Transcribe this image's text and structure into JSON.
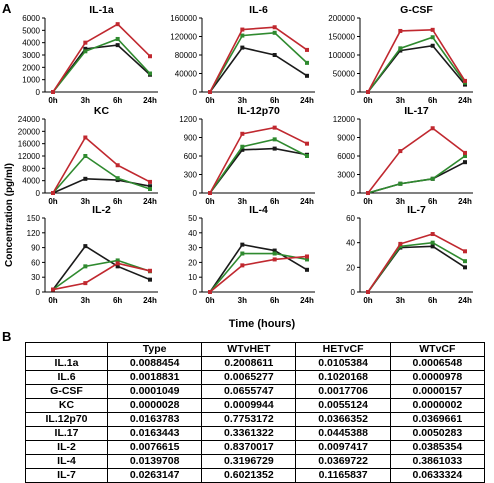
{
  "panel_a_label": "A",
  "panel_b_label": "B",
  "ylabel": "Concentration (pg/ml)",
  "xlabel": "Time (hours)",
  "colors": {
    "black": "#1a1a1a",
    "green": "#2f8a2f",
    "red": "#c0282f"
  },
  "chart_data": [
    {
      "type": "line",
      "title": "IL-1a",
      "categories": [
        "0h",
        "3h",
        "6h",
        "24h"
      ],
      "ylim": [
        0,
        6000
      ],
      "yticks": [
        0,
        1000,
        2000,
        3000,
        4000,
        5000,
        6000
      ],
      "series": [
        {
          "values": [
            0,
            3500,
            3800,
            1400
          ]
        },
        {
          "values": [
            0,
            3300,
            4300,
            1500
          ]
        },
        {
          "values": [
            0,
            4000,
            5500,
            2900
          ]
        }
      ]
    },
    {
      "type": "line",
      "title": "IL-6",
      "categories": [
        "0h",
        "3h",
        "6h",
        "24h"
      ],
      "ylim": [
        0,
        160000
      ],
      "yticks": [
        0,
        40000,
        80000,
        120000,
        160000
      ],
      "series": [
        {
          "values": [
            0,
            96000,
            80000,
            35000
          ]
        },
        {
          "values": [
            0,
            122000,
            128000,
            63000
          ]
        },
        {
          "values": [
            0,
            135000,
            140000,
            91000
          ]
        }
      ]
    },
    {
      "type": "line",
      "title": "G-CSF",
      "categories": [
        "0h",
        "3h",
        "6h",
        "24h"
      ],
      "ylim": [
        0,
        200000
      ],
      "yticks": [
        0,
        50000,
        100000,
        150000,
        200000
      ],
      "series": [
        {
          "values": [
            0,
            112000,
            125000,
            20000
          ]
        },
        {
          "values": [
            0,
            118000,
            148000,
            25000
          ]
        },
        {
          "values": [
            0,
            165000,
            168000,
            30000
          ]
        }
      ]
    },
    {
      "type": "line",
      "title": "KC",
      "categories": [
        "0h",
        "3h",
        "6h",
        "24h"
      ],
      "ylim": [
        0,
        24000
      ],
      "yticks": [
        0,
        4000,
        8000,
        12000,
        16000,
        20000,
        24000
      ],
      "series": [
        {
          "values": [
            0,
            4600,
            4200,
            2200
          ]
        },
        {
          "values": [
            0,
            12000,
            4800,
            1300
          ]
        },
        {
          "values": [
            0,
            18000,
            9000,
            3600
          ]
        }
      ]
    },
    {
      "type": "line",
      "title": "IL-12p70",
      "categories": [
        "0h",
        "3h",
        "6h",
        "24h"
      ],
      "ylim": [
        0,
        1200
      ],
      "yticks": [
        0,
        300,
        600,
        900,
        1200
      ],
      "series": [
        {
          "values": [
            0,
            700,
            720,
            620
          ]
        },
        {
          "values": [
            0,
            750,
            870,
            600
          ]
        },
        {
          "values": [
            0,
            960,
            1060,
            800
          ]
        }
      ]
    },
    {
      "type": "line",
      "title": "IL-17",
      "categories": [
        "0h",
        "3h",
        "6h",
        "24h"
      ],
      "ylim": [
        0,
        12000
      ],
      "yticks": [
        0,
        3000,
        6000,
        9000,
        12000
      ],
      "series": [
        {
          "values": [
            0,
            1500,
            2300,
            5000
          ]
        },
        {
          "values": [
            0,
            1500,
            2300,
            6000
          ]
        },
        {
          "values": [
            0,
            6800,
            10500,
            6500
          ]
        }
      ]
    },
    {
      "type": "line",
      "title": "IL-2",
      "categories": [
        "0h",
        "3h",
        "6h",
        "24h"
      ],
      "ylim": [
        0,
        150
      ],
      "yticks": [
        0,
        30,
        60,
        90,
        120,
        150
      ],
      "series": [
        {
          "values": [
            5,
            93,
            52,
            25
          ]
        },
        {
          "values": [
            5,
            52,
            64,
            42
          ]
        },
        {
          "values": [
            5,
            18,
            58,
            43
          ]
        }
      ]
    },
    {
      "type": "line",
      "title": "IL-4",
      "categories": [
        "0h",
        "3h",
        "6h",
        "24h"
      ],
      "ylim": [
        0,
        50
      ],
      "yticks": [
        0,
        10,
        20,
        30,
        40,
        50
      ],
      "series": [
        {
          "values": [
            0,
            32,
            28,
            15
          ]
        },
        {
          "values": [
            0,
            26,
            26,
            22
          ]
        },
        {
          "values": [
            0,
            18,
            22,
            24
          ]
        }
      ]
    },
    {
      "type": "line",
      "title": "IL-7",
      "categories": [
        "0h",
        "3h",
        "6h",
        "24h"
      ],
      "ylim": [
        0,
        60
      ],
      "yticks": [
        0,
        20,
        40,
        60
      ],
      "series": [
        {
          "values": [
            0,
            36,
            37,
            20
          ]
        },
        {
          "values": [
            0,
            37,
            40,
            25
          ]
        },
        {
          "values": [
            0,
            39,
            47,
            33
          ]
        }
      ]
    }
  ],
  "table": {
    "headers": [
      "",
      "Type",
      "WTvHET",
      "HETvCF",
      "WTvCF"
    ],
    "rows": [
      [
        "IL.1a",
        "0.0088454",
        "0.2008611",
        "0.0105384",
        "0.0006548"
      ],
      [
        "IL.6",
        "0.0018831",
        "0.0065277",
        "0.1020168",
        "0.0000978"
      ],
      [
        "G-CSF",
        "0.0001049",
        "0.0655747",
        "0.0017706",
        "0.0000157"
      ],
      [
        "KC",
        "0.0000028",
        "0.0009944",
        "0.0055124",
        "0.0000002"
      ],
      [
        "IL.12p70",
        "0.0163783",
        "0.7753172",
        "0.0366352",
        "0.0369661"
      ],
      [
        "IL.17",
        "0.0163443",
        "0.3361322",
        "0.0445388",
        "0.0050283"
      ],
      [
        "IL-2",
        "0.0076615",
        "0.8370017",
        "0.0097417",
        "0.0385354"
      ],
      [
        "IL-4",
        "0.0139708",
        "0.3196729",
        "0.0369722",
        "0.3861033"
      ],
      [
        "IL-7",
        "0.0263147",
        "0.6021352",
        "0.1165837",
        "0.0633324"
      ]
    ]
  }
}
